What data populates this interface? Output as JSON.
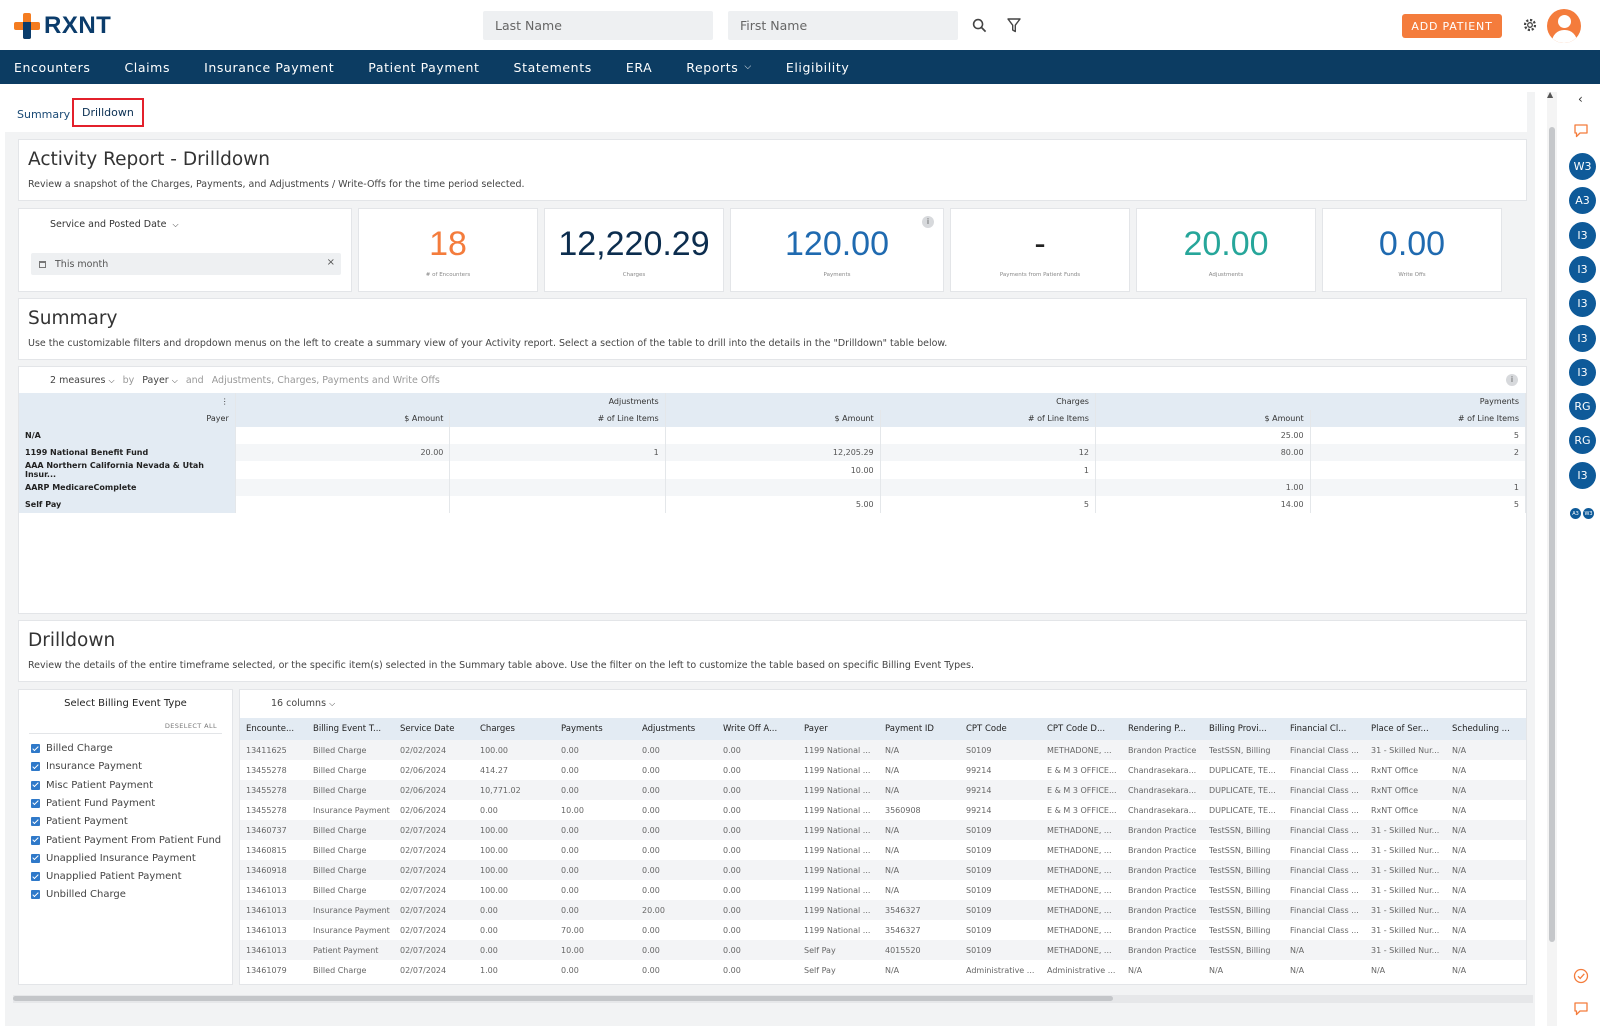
{
  "app": {
    "logo_text": "RXNT"
  },
  "header": {
    "last_name_placeholder": "Last Name",
    "first_name_placeholder": "First Name",
    "add_patient_label": "ADD PATIENT"
  },
  "nav": {
    "items": [
      "Encounters",
      "Claims",
      "Insurance Payment",
      "Patient Payment",
      "Statements",
      "ERA",
      "Reports",
      "Eligibility"
    ]
  },
  "tabs": {
    "summary": "Summary",
    "drilldown": "Drilldown"
  },
  "report": {
    "title": "Activity Report - Drilldown",
    "description": "Review a snapshot of the Charges, Payments, and Adjustments / Write-Offs for the time period selected.",
    "date_filter_label": "Service and Posted Date",
    "date_range_value": "This month"
  },
  "kpis": [
    {
      "value": "18",
      "label": "# of Encounters",
      "color": "#f47c3c"
    },
    {
      "value": "12,220.29",
      "label": "Charges",
      "color": "#0c2d4e"
    },
    {
      "value": "120.00",
      "label": "Payments",
      "color": "#1f6ab0"
    },
    {
      "value": "-",
      "label": "Payments from Patient Funds",
      "color": "#222222"
    },
    {
      "value": "20.00",
      "label": "Adjustments",
      "color": "#26a69a"
    },
    {
      "value": "0.00",
      "label": "Write Offs",
      "color": "#1f6ab0"
    }
  ],
  "summary": {
    "title": "Summary",
    "description": "Use the customizable filters and dropdown menus on the left to create a summary view of your Activity report. Select a section of the table to drill into the details in the \"Drilldown\" table below.",
    "measures_label": "2 measures",
    "by_label": "by",
    "payer_label": "Payer",
    "and_label": "and",
    "columns_label": "Adjustments, Charges, Payments and Write Offs",
    "groups": [
      "Adjustments",
      "Charges",
      "Payments"
    ],
    "row_header": "Payer",
    "sub_headers": [
      "$ Amount",
      "# of Line Items",
      "$ Amount",
      "# of Line Items",
      "$ Amount",
      "# of Line Items"
    ],
    "rows": [
      {
        "payer": "N/A",
        "cells": [
          "",
          "",
          "",
          "",
          "25.00",
          "5"
        ]
      },
      {
        "payer": "1199 National Benefit Fund",
        "cells": [
          "20.00",
          "1",
          "12,205.29",
          "12",
          "80.00",
          "2"
        ]
      },
      {
        "payer": "AAA Northern California Nevada & Utah Insur...",
        "cells": [
          "",
          "",
          "10.00",
          "1",
          "",
          ""
        ]
      },
      {
        "payer": "AARP MedicareComplete",
        "cells": [
          "",
          "",
          "",
          "",
          "1.00",
          "1"
        ]
      },
      {
        "payer": "Self Pay",
        "cells": [
          "",
          "",
          "5.00",
          "5",
          "14.00",
          "5"
        ]
      }
    ]
  },
  "drilldown": {
    "title": "Drilldown",
    "description": "Review the details of the entire timeframe selected, or the specific item(s) selected in the Summary table above. Use the filter on the left to customize the table based on specific Billing Event Types.",
    "filter_title": "Select Billing Event Type",
    "deselect_all": "DESELECT ALL",
    "billing_types": [
      "Billed Charge",
      "Insurance Payment",
      "Misc Patient Payment",
      "Patient Fund Payment",
      "Patient Payment",
      "Patient Payment From Patient Fund",
      "Unapplied Insurance Payment",
      "Unapplied Patient Payment",
      "Unbilled Charge"
    ],
    "columns_label": "16 columns",
    "columns": [
      "Encounte...",
      "Billing Event T...",
      "Service Date",
      "Charges",
      "Payments",
      "Adjustments",
      "Write Off A...",
      "Payer",
      "Payment ID",
      "CPT Code",
      "CPT Code D...",
      "Rendering P...",
      "Billing Provi...",
      "Financial Cl...",
      "Place of Ser...",
      "Scheduling ..."
    ],
    "rows": [
      [
        "13411625",
        "Billed Charge",
        "02/02/2024",
        "100.00",
        "0.00",
        "0.00",
        "0.00",
        "1199 National ...",
        "N/A",
        "S0109",
        "METHADONE, ...",
        "Brandon Practice",
        "TestSSN, Billing",
        "Financial Class ...",
        "31 - Skilled Nur...",
        "N/A"
      ],
      [
        "13455278",
        "Billed Charge",
        "02/06/2024",
        "414.27",
        "0.00",
        "0.00",
        "0.00",
        "1199 National ...",
        "N/A",
        "99214",
        "E & M 3 OFFICE...",
        "Chandrasekara...",
        "DUPLICATE, TE...",
        "Financial Class ...",
        "RxNT Office",
        "N/A"
      ],
      [
        "13455278",
        "Billed Charge",
        "02/06/2024",
        "10,771.02",
        "0.00",
        "0.00",
        "0.00",
        "1199 National ...",
        "N/A",
        "99214",
        "E & M 3 OFFICE...",
        "Chandrasekara...",
        "DUPLICATE, TE...",
        "Financial Class ...",
        "RxNT Office",
        "N/A"
      ],
      [
        "13455278",
        "Insurance Payment",
        "02/06/2024",
        "0.00",
        "10.00",
        "0.00",
        "0.00",
        "1199 National ...",
        "3560908",
        "99214",
        "E & M 3 OFFICE...",
        "Chandrasekara...",
        "DUPLICATE, TE...",
        "Financial Class ...",
        "RxNT Office",
        "N/A"
      ],
      [
        "13460737",
        "Billed Charge",
        "02/07/2024",
        "100.00",
        "0.00",
        "0.00",
        "0.00",
        "1199 National ...",
        "N/A",
        "S0109",
        "METHADONE, ...",
        "Brandon Practice",
        "TestSSN, Billing",
        "Financial Class ...",
        "31 - Skilled Nur...",
        "N/A"
      ],
      [
        "13460815",
        "Billed Charge",
        "02/07/2024",
        "100.00",
        "0.00",
        "0.00",
        "0.00",
        "1199 National ...",
        "N/A",
        "S0109",
        "METHADONE, ...",
        "Brandon Practice",
        "TestSSN, Billing",
        "Financial Class ...",
        "31 - Skilled Nur...",
        "N/A"
      ],
      [
        "13460918",
        "Billed Charge",
        "02/07/2024",
        "100.00",
        "0.00",
        "0.00",
        "0.00",
        "1199 National ...",
        "N/A",
        "S0109",
        "METHADONE, ...",
        "Brandon Practice",
        "TestSSN, Billing",
        "Financial Class ...",
        "31 - Skilled Nur...",
        "N/A"
      ],
      [
        "13461013",
        "Billed Charge",
        "02/07/2024",
        "100.00",
        "0.00",
        "0.00",
        "0.00",
        "1199 National ...",
        "N/A",
        "S0109",
        "METHADONE, ...",
        "Brandon Practice",
        "TestSSN, Billing",
        "Financial Class ...",
        "31 - Skilled Nur...",
        "N/A"
      ],
      [
        "13461013",
        "Insurance Payment",
        "02/07/2024",
        "0.00",
        "0.00",
        "20.00",
        "0.00",
        "1199 National ...",
        "3546327",
        "S0109",
        "METHADONE, ...",
        "Brandon Practice",
        "TestSSN, Billing",
        "Financial Class ...",
        "31 - Skilled Nur...",
        "N/A"
      ],
      [
        "13461013",
        "Insurance Payment",
        "02/07/2024",
        "0.00",
        "70.00",
        "0.00",
        "0.00",
        "1199 National ...",
        "3546327",
        "S0109",
        "METHADONE, ...",
        "Brandon Practice",
        "TestSSN, Billing",
        "Financial Class ...",
        "31 - Skilled Nur...",
        "N/A"
      ],
      [
        "13461013",
        "Patient Payment",
        "02/07/2024",
        "0.00",
        "10.00",
        "0.00",
        "0.00",
        "Self Pay",
        "4015520",
        "S0109",
        "METHADONE, ...",
        "Brandon Practice",
        "TestSSN, Billing",
        "N/A",
        "31 - Skilled Nur...",
        "N/A"
      ],
      [
        "13461079",
        "Billed Charge",
        "02/07/2024",
        "1.00",
        "0.00",
        "0.00",
        "0.00",
        "Self Pay",
        "N/A",
        "Administrative ...",
        "Administrative ...",
        "N/A",
        "N/A",
        "N/A",
        "N/A",
        "N/A"
      ]
    ]
  },
  "rail": {
    "bubbles": [
      "W3",
      "A3",
      "I3",
      "I3",
      "I3",
      "I3",
      "I3",
      "RG",
      "RG",
      "I3"
    ],
    "small_bubbles": [
      "A3",
      "W3"
    ]
  }
}
